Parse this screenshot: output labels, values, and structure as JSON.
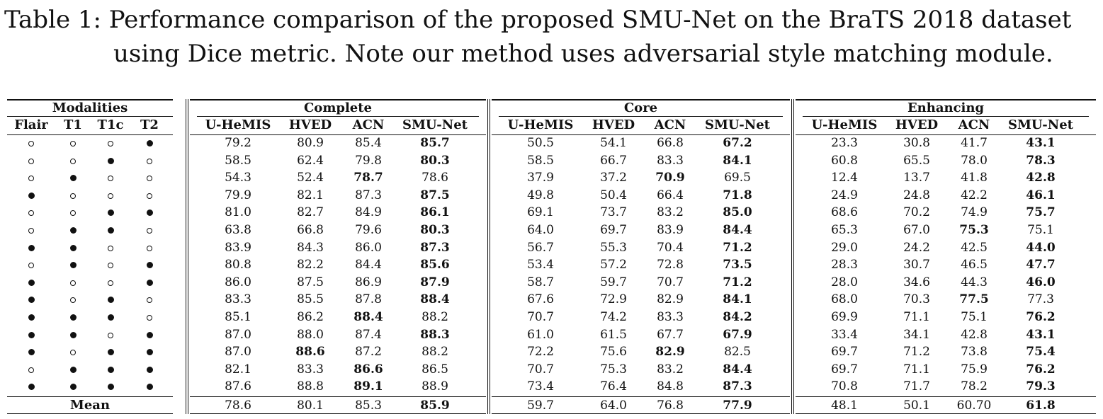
{
  "caption": {
    "line1": "Table 1: Performance comparison of the proposed SMU-Net on the BraTS 2018 dataset",
    "line2": "using Dice metric. Note our method uses adversarial style matching module."
  },
  "modalities": {
    "title": "Modalities",
    "columns": [
      "Flair",
      "T1",
      "T1c",
      "T2"
    ],
    "rows": [
      [
        0,
        0,
        0,
        1
      ],
      [
        0,
        0,
        1,
        0
      ],
      [
        0,
        1,
        0,
        0
      ],
      [
        1,
        0,
        0,
        0
      ],
      [
        0,
        0,
        1,
        1
      ],
      [
        0,
        1,
        1,
        0
      ],
      [
        1,
        1,
        0,
        0
      ],
      [
        0,
        1,
        0,
        1
      ],
      [
        1,
        0,
        0,
        1
      ],
      [
        1,
        0,
        1,
        0
      ],
      [
        1,
        1,
        1,
        0
      ],
      [
        1,
        1,
        0,
        1
      ],
      [
        1,
        0,
        1,
        1
      ],
      [
        0,
        1,
        1,
        1
      ],
      [
        1,
        1,
        1,
        1
      ]
    ],
    "mean_label": "Mean"
  },
  "groups": [
    {
      "title": "Complete",
      "columns": [
        "U-HeMIS",
        "HVED",
        "ACN",
        "SMU-Net"
      ],
      "rows": [
        [
          "79.2",
          "80.9",
          "85.4",
          "85.7"
        ],
        [
          "58.5",
          "62.4",
          "79.8",
          "80.3"
        ],
        [
          "54.3",
          "52.4",
          "78.7",
          "78.6"
        ],
        [
          "79.9",
          "82.1",
          "87.3",
          "87.5"
        ],
        [
          "81.0",
          "82.7",
          "84.9",
          "86.1"
        ],
        [
          "63.8",
          "66.8",
          "79.6",
          "80.3"
        ],
        [
          "83.9",
          "84.3",
          "86.0",
          "87.3"
        ],
        [
          "80.8",
          "82.2",
          "84.4",
          "85.6"
        ],
        [
          "86.0",
          "87.5",
          "86.9",
          "87.9"
        ],
        [
          "83.3",
          "85.5",
          "87.8",
          "88.4"
        ],
        [
          "85.1",
          "86.2",
          "88.4",
          "88.2"
        ],
        [
          "87.0",
          "88.0",
          "87.4",
          "88.3"
        ],
        [
          "87.0",
          "88.6",
          "87.2",
          "88.2"
        ],
        [
          "82.1",
          "83.3",
          "86.6",
          "86.5"
        ],
        [
          "87.6",
          "88.8",
          "89.1",
          "88.9"
        ]
      ],
      "best": [
        3,
        3,
        2,
        3,
        3,
        3,
        3,
        3,
        3,
        3,
        2,
        3,
        1,
        2,
        2
      ],
      "mean": [
        "78.6",
        "80.1",
        "85.3",
        "85.9"
      ],
      "mean_best": 3
    },
    {
      "title": "Core",
      "columns": [
        "U-HeMIS",
        "HVED",
        "ACN",
        "SMU-Net"
      ],
      "rows": [
        [
          "50.5",
          "54.1",
          "66.8",
          "67.2"
        ],
        [
          "58.5",
          "66.7",
          "83.3",
          "84.1"
        ],
        [
          "37.9",
          "37.2",
          "70.9",
          "69.5"
        ],
        [
          "49.8",
          "50.4",
          "66.4",
          "71.8"
        ],
        [
          "69.1",
          "73.7",
          "83.2",
          "85.0"
        ],
        [
          "64.0",
          "69.7",
          "83.9",
          "84.4"
        ],
        [
          "56.7",
          "55.3",
          "70.4",
          "71.2"
        ],
        [
          "53.4",
          "57.2",
          "72.8",
          "73.5"
        ],
        [
          "58.7",
          "59.7",
          "70.7",
          "71.2"
        ],
        [
          "67.6",
          "72.9",
          "82.9",
          "84.1"
        ],
        [
          "70.7",
          "74.2",
          "83.3",
          "84.2"
        ],
        [
          "61.0",
          "61.5",
          "67.7",
          "67.9"
        ],
        [
          "72.2",
          "75.6",
          "82.9",
          "82.5"
        ],
        [
          "70.7",
          "75.3",
          "83.2",
          "84.4"
        ],
        [
          "73.4",
          "76.4",
          "84.8",
          "87.3"
        ]
      ],
      "best": [
        3,
        3,
        2,
        3,
        3,
        3,
        3,
        3,
        3,
        3,
        3,
        3,
        2,
        3,
        3
      ],
      "mean": [
        "59.7",
        "64.0",
        "76.8",
        "77.9"
      ],
      "mean_best": 3
    },
    {
      "title": "Enhancing",
      "columns": [
        "U-HeMIS",
        "HVED",
        "ACN",
        "SMU-Net"
      ],
      "rows": [
        [
          "23.3",
          "30.8",
          "41.7",
          "43.1"
        ],
        [
          "60.8",
          "65.5",
          "78.0",
          "78.3"
        ],
        [
          "12.4",
          "13.7",
          "41.8",
          "42.8"
        ],
        [
          "24.9",
          "24.8",
          "42.2",
          "46.1"
        ],
        [
          "68.6",
          "70.2",
          "74.9",
          "75.7"
        ],
        [
          "65.3",
          "67.0",
          "75.3",
          "75.1"
        ],
        [
          "29.0",
          "24.2",
          "42.5",
          "44.0"
        ],
        [
          "28.3",
          "30.7",
          "46.5",
          "47.7"
        ],
        [
          "28.0",
          "34.6",
          "44.3",
          "46.0"
        ],
        [
          "68.0",
          "70.3",
          "77.5",
          "77.3"
        ],
        [
          "69.9",
          "71.1",
          "75.1",
          "76.2"
        ],
        [
          "33.4",
          "34.1",
          "42.8",
          "43.1"
        ],
        [
          "69.7",
          "71.2",
          "73.8",
          "75.4"
        ],
        [
          "69.7",
          "71.1",
          "75.9",
          "76.2"
        ],
        [
          "70.8",
          "71.7",
          "78.2",
          "79.3"
        ]
      ],
      "best": [
        3,
        3,
        3,
        3,
        3,
        2,
        3,
        3,
        3,
        2,
        3,
        3,
        3,
        3,
        3
      ],
      "mean": [
        "48.1",
        "50.1",
        "60.70",
        "61.8"
      ],
      "mean_best": 3
    }
  ]
}
